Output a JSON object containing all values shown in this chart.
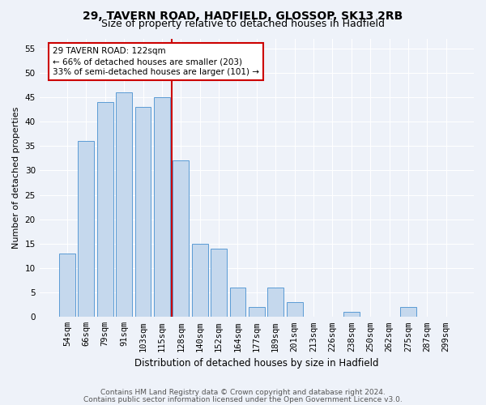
{
  "title1": "29, TAVERN ROAD, HADFIELD, GLOSSOP, SK13 2RB",
  "title2": "Size of property relative to detached houses in Hadfield",
  "xlabel": "Distribution of detached houses by size in Hadfield",
  "ylabel": "Number of detached properties",
  "categories": [
    "54sqm",
    "66sqm",
    "79sqm",
    "91sqm",
    "103sqm",
    "115sqm",
    "128sqm",
    "140sqm",
    "152sqm",
    "164sqm",
    "177sqm",
    "189sqm",
    "201sqm",
    "213sqm",
    "226sqm",
    "238sqm",
    "250sqm",
    "262sqm",
    "275sqm",
    "287sqm",
    "299sqm"
  ],
  "values": [
    13,
    36,
    44,
    46,
    43,
    45,
    32,
    15,
    14,
    6,
    2,
    6,
    3,
    0,
    0,
    1,
    0,
    0,
    2,
    0,
    0
  ],
  "bar_color": "#c5d8ed",
  "bar_edge_color": "#5b9bd5",
  "property_label": "29 TAVERN ROAD: 122sqm",
  "annotation_line1": "← 66% of detached houses are smaller (203)",
  "annotation_line2": "33% of semi-detached houses are larger (101) →",
  "vline_color": "#cc0000",
  "vline_x": 5.5,
  "ylim": [
    0,
    57
  ],
  "yticks": [
    0,
    5,
    10,
    15,
    20,
    25,
    30,
    35,
    40,
    45,
    50,
    55
  ],
  "footer1": "Contains HM Land Registry data © Crown copyright and database right 2024.",
  "footer2": "Contains public sector information licensed under the Open Government Licence v3.0.",
  "background_color": "#eef2f9",
  "grid_color": "#ffffff",
  "title1_fontsize": 10,
  "title2_fontsize": 9,
  "xlabel_fontsize": 8.5,
  "ylabel_fontsize": 8,
  "tick_fontsize": 7.5,
  "footer_fontsize": 6.5,
  "annotation_fontsize": 7.5,
  "annotation_box_color": "#ffffff",
  "annotation_box_edge": "#cc0000"
}
